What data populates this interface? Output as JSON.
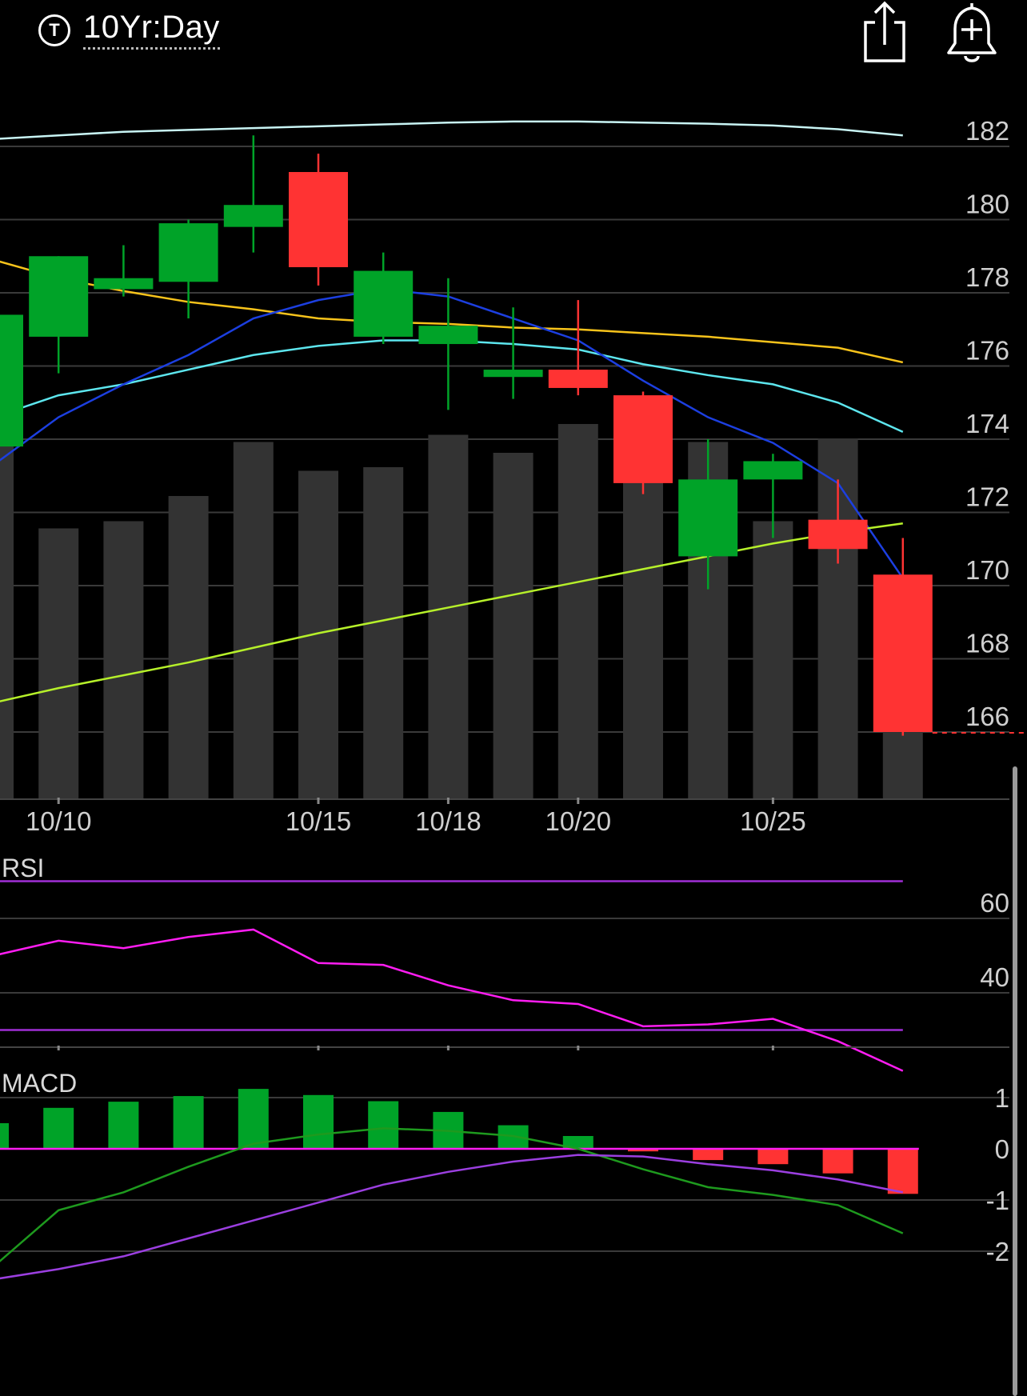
{
  "header": {
    "symbol_icon": "T",
    "title": "10Yr:Day",
    "share_icon": "share-icon",
    "alert_icon": "bell-plus-icon"
  },
  "colors": {
    "up": "#00a328",
    "down": "#ff3333",
    "volume": "#333333",
    "grid": "#3a3a3a",
    "ma_white": "#c8f4f4",
    "ma_orange": "#f7c31b",
    "ma_cyan": "#5de6ee",
    "ma_blue": "#1c3fe0",
    "ma_lime": "#b6f02a",
    "rsi_line": "#ff1df2",
    "rsi_band": "#a02ed6",
    "macd_line": "#1e9a1e",
    "signal_line": "#9b3fe0",
    "zero_line": "#ff1df2"
  },
  "chart_data": [
    {
      "type": "candlestick",
      "title": "10Yr:Day",
      "ylim": [
        164,
        183
      ],
      "yticks": [
        182,
        180,
        178,
        176,
        174,
        172,
        170,
        168,
        166
      ],
      "xticks": [
        {
          "label": "10/10",
          "index": 1
        },
        {
          "label": "10/15",
          "index": 5
        },
        {
          "label": "10/18",
          "index": 7
        },
        {
          "label": "10/20",
          "index": 9
        },
        {
          "label": "10/25",
          "index": 12
        }
      ],
      "candles": [
        {
          "open": 173.8,
          "high": 177.5,
          "low": 173.5,
          "close": 177.4
        },
        {
          "open": 176.8,
          "high": 179.0,
          "low": 175.8,
          "close": 179.0
        },
        {
          "open": 178.1,
          "high": 179.3,
          "low": 177.9,
          "close": 178.4
        },
        {
          "open": 178.3,
          "high": 180.0,
          "low": 177.3,
          "close": 179.9
        },
        {
          "open": 179.8,
          "high": 182.3,
          "low": 179.1,
          "close": 180.4
        },
        {
          "open": 181.3,
          "high": 181.8,
          "low": 178.2,
          "close": 178.7
        },
        {
          "open": 176.8,
          "high": 179.1,
          "low": 176.6,
          "close": 178.6
        },
        {
          "open": 176.6,
          "high": 178.4,
          "low": 174.8,
          "close": 177.1
        },
        {
          "open": 175.7,
          "high": 177.6,
          "low": 175.1,
          "close": 175.9
        },
        {
          "open": 175.9,
          "high": 177.8,
          "low": 175.2,
          "close": 175.4
        },
        {
          "open": 175.2,
          "high": 175.3,
          "low": 172.5,
          "close": 172.8
        },
        {
          "open": 170.8,
          "high": 174.0,
          "low": 169.9,
          "close": 172.9
        },
        {
          "open": 172.9,
          "high": 173.6,
          "low": 171.3,
          "close": 173.4
        },
        {
          "open": 171.8,
          "high": 172.9,
          "low": 170.6,
          "close": 171.0
        },
        {
          "open": 170.3,
          "high": 171.3,
          "low": 165.9,
          "close": 166.0
        }
      ],
      "volume": [
        1.0,
        0.75,
        0.77,
        0.84,
        0.99,
        0.91,
        0.92,
        1.01,
        0.96,
        1.04,
        0.97,
        0.99,
        0.77,
        1.0,
        0.19
      ],
      "moving_averages": [
        {
          "color_key": "ma_white",
          "values": [
            182.2,
            182.3,
            182.4,
            182.45,
            182.5,
            182.55,
            182.6,
            182.65,
            182.68,
            182.68,
            182.65,
            182.62,
            182.57,
            182.47,
            182.3
          ]
        },
        {
          "color_key": "ma_orange",
          "values": [
            178.9,
            178.4,
            178.05,
            177.75,
            177.55,
            177.3,
            177.2,
            177.15,
            177.05,
            177.0,
            176.9,
            176.8,
            176.65,
            176.5,
            176.1
          ]
        },
        {
          "color_key": "ma_cyan",
          "values": [
            174.6,
            175.2,
            175.5,
            175.9,
            176.3,
            176.55,
            176.7,
            176.7,
            176.6,
            176.45,
            176.05,
            175.75,
            175.5,
            175.0,
            174.2
          ]
        },
        {
          "color_key": "ma_blue",
          "values": [
            173.3,
            174.6,
            175.5,
            176.3,
            177.3,
            177.8,
            178.1,
            177.9,
            177.3,
            176.7,
            175.6,
            174.6,
            173.9,
            172.8,
            170.2
          ]
        },
        {
          "color_key": "ma_lime",
          "values": [
            166.8,
            167.2,
            167.55,
            167.9,
            168.3,
            168.7,
            169.05,
            169.4,
            169.75,
            170.1,
            170.45,
            170.8,
            171.15,
            171.45,
            171.7
          ]
        }
      ]
    },
    {
      "type": "line",
      "title": "RSI",
      "ylim": [
        14,
        77
      ],
      "yticks": [
        60,
        40
      ],
      "bands": [
        70,
        30
      ],
      "values": [
        50,
        54,
        52,
        55,
        57,
        48,
        47.5,
        42,
        38,
        37,
        31,
        31.5,
        33,
        27,
        19
      ]
    },
    {
      "type": "bar",
      "title": "MACD",
      "ylim": [
        -2.3,
        1.4
      ],
      "yticks": [
        1,
        0,
        -1,
        -2
      ],
      "histogram": [
        0.5,
        0.8,
        0.92,
        1.03,
        1.17,
        1.05,
        0.93,
        0.72,
        0.46,
        0.25,
        -0.05,
        -0.22,
        -0.3,
        -0.48,
        -0.88
      ],
      "macd": [
        -2.3,
        -1.2,
        -0.85,
        -0.35,
        0.1,
        0.28,
        0.4,
        0.35,
        0.25,
        0.0,
        -0.4,
        -0.75,
        -0.9,
        -1.1,
        -1.65
      ],
      "signal": [
        -2.55,
        -2.35,
        -2.1,
        -1.75,
        -1.4,
        -1.05,
        -0.7,
        -0.45,
        -0.25,
        -0.12,
        -0.15,
        -0.3,
        -0.42,
        -0.6,
        -0.85
      ]
    }
  ]
}
